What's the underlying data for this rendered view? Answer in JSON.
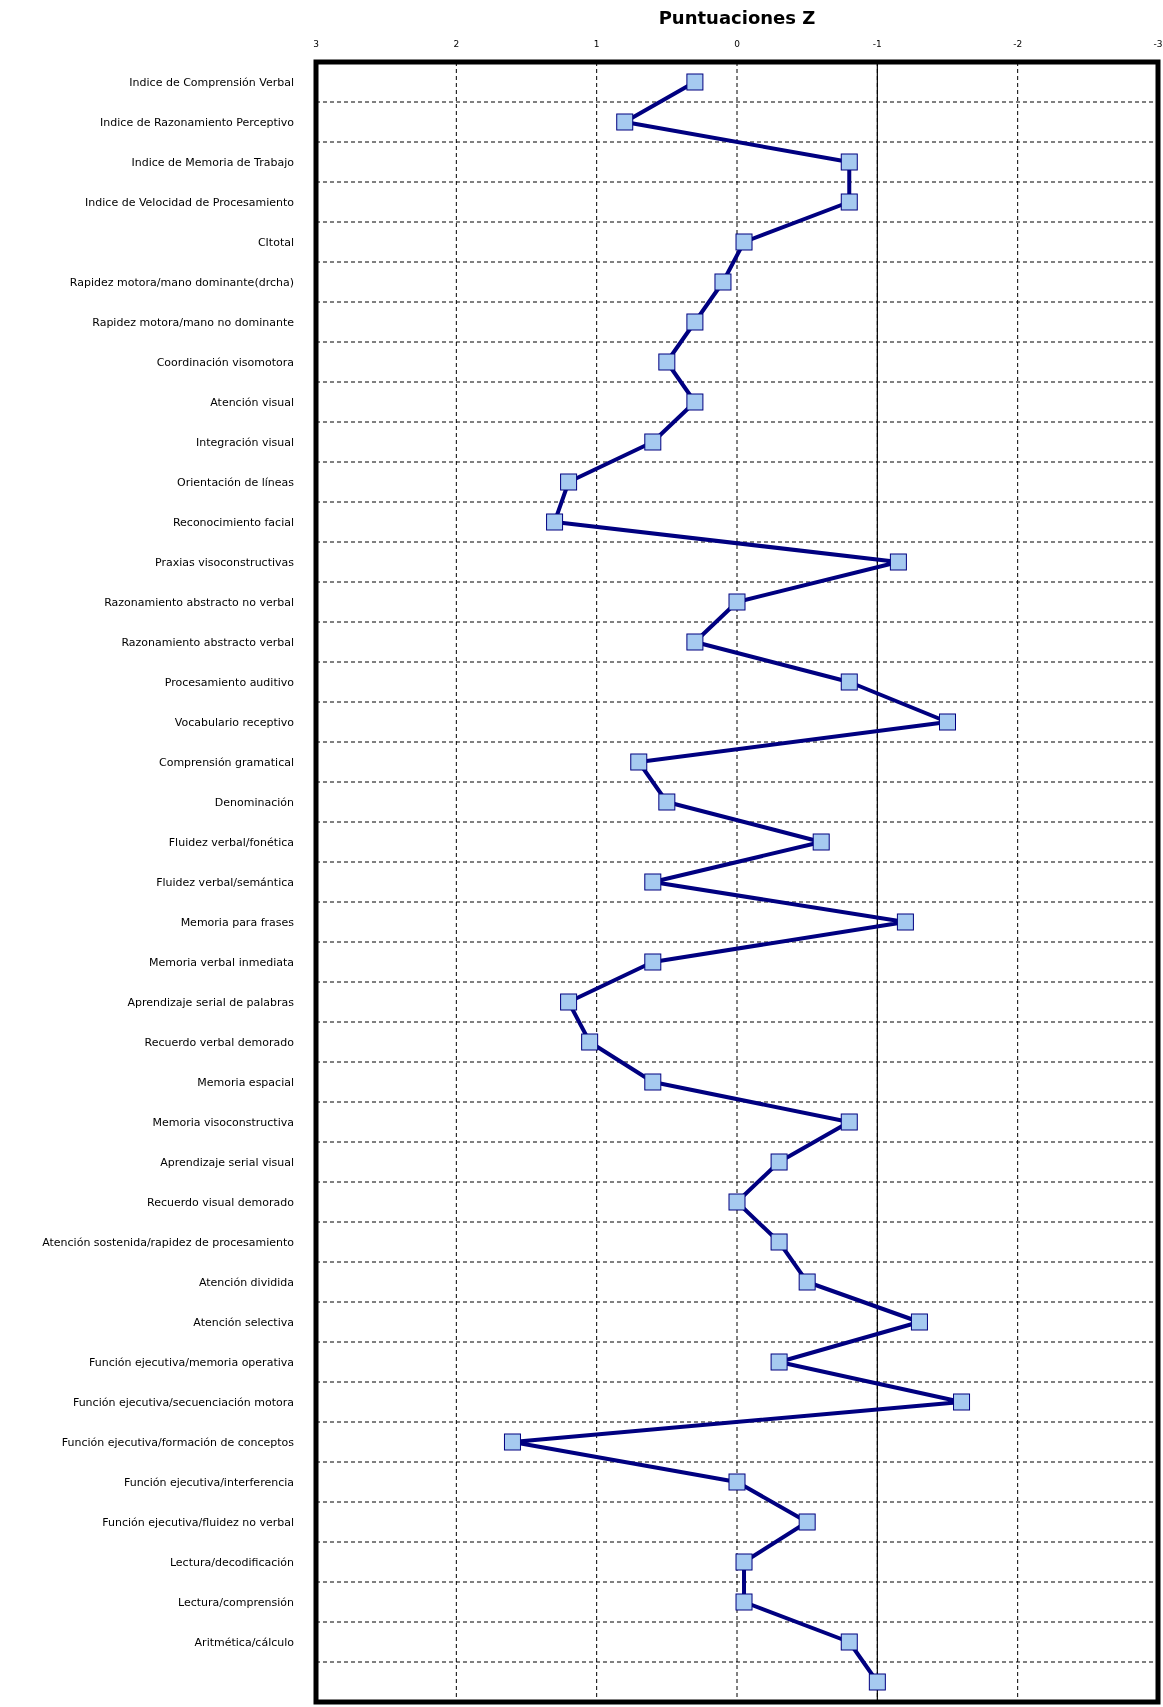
{
  "chart_data": {
    "type": "line",
    "orientation": "horizontal",
    "title": "Puntuaciones Z",
    "categories": [
      "Indice de Comprensión  Verbal",
      "Indice de Razonamiento  Perceptivo",
      "Indice de Memoria de Trabajo",
      "Indice de Velocidad de Procesamiento",
      "CItotal",
      "Rapidez motora/mano  dominante(drcha)",
      "Rapidez motora/mano  no dominante",
      "Coordinación  visomotora",
      "Atención  visual",
      "Integración  visual",
      "Orientación de líneas",
      "Reconocimiento facial",
      "Praxias visoconstructivas",
      "Razonamiento abstracto no verbal",
      "Razonamiento abstracto  verbal",
      "Procesamiento auditivo",
      "Vocabulario receptivo",
      "Comprensión  gramatical",
      "Denominación",
      "Fluidez verbal/fonética",
      "Fluidez verbal/semántica",
      "Memoria para frases",
      "Memoria verbal inmediata",
      "Aprendizaje serial de palabras",
      "Recuerdo verbal demorado",
      "Memoria espacial",
      "Memoria visoconstructiva",
      "Aprendizaje serial visual",
      "Recuerdo visual demorado",
      "Atención sostenida/rapidez de procesamiento",
      "Atención dividida",
      "Atención selectiva",
      "Función ejecutiva/memoria operativa",
      "Función ejecutiva/secuenciación motora",
      "Función ejecutiva/formación de conceptos",
      "Función ejecutiva/interferencia",
      "Función ejecutiva/fluidez no verbal",
      "Lectura/decodificación",
      "Lectura/comprensión",
      "Aritmética/cálculo",
      null
    ],
    "series": [
      {
        "color": "#000080",
        "values": [
          0.3,
          0.8,
          -0.8,
          -0.8,
          -0.05,
          0.1,
          0.3,
          0.5,
          0.3,
          0.6,
          1.2,
          1.3,
          -1.15,
          0,
          0.3,
          -0.8,
          -1.5,
          0.7,
          0.5,
          -0.6,
          0.6,
          -1.2,
          0.6,
          1.2,
          1.05,
          0.6,
          -0.8,
          -0.3,
          0,
          -0.3,
          -0.5,
          -1.3,
          -0.3,
          -1.6,
          1.6,
          0,
          -0.5,
          -0.05,
          -0.05,
          -0.8,
          -1
        ]
      }
    ],
    "xlim": [
      3,
      -3
    ],
    "xticks": [
      3,
      2,
      1,
      0,
      -1,
      -2,
      -3
    ],
    "ref_lines": [
      {
        "axis": "x",
        "value": -1,
        "color": "#000000"
      }
    ],
    "grid": true,
    "marker": "square",
    "line_style": "solid"
  }
}
